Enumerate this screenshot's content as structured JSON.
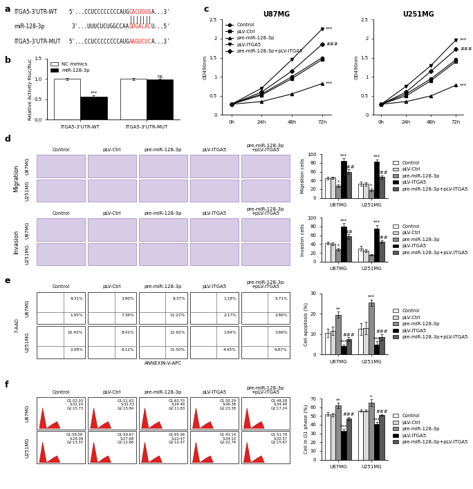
{
  "panel_labels": [
    "a",
    "b",
    "c",
    "d",
    "e",
    "f"
  ],
  "panel_a": {
    "rows": [
      {
        "name": "ITGA5-3'UTR-WT",
        "segments": [
          {
            "text": "5'...CCUCCCCCCCCAUG",
            "color": "#000000"
          },
          {
            "text": "CACUGUG",
            "color": "#e0201b"
          },
          {
            "text": "A...3'",
            "color": "#000000"
          }
        ]
      },
      {
        "name": "miR-128-3p",
        "segments": [
          {
            "text": "3'...UUUCUCUGGCCAA",
            "color": "#000000"
          },
          {
            "text": "GUGACAC",
            "color": "#e0201b"
          },
          {
            "text": "U...5'",
            "color": "#000000"
          }
        ]
      },
      {
        "name": "ITGA5-3'UTR-MUT",
        "segments": [
          {
            "text": "5'...CCUCCCCCCCCAUG",
            "color": "#000000"
          },
          {
            "text": "AAGUCUC",
            "color": "#e0201b"
          },
          {
            "text": "A...3'",
            "color": "#000000"
          }
        ]
      }
    ]
  },
  "chart_data": [
    {
      "type": "bar",
      "categories": [
        "ITGA5-3'UTR-WT",
        "ITGA5-3'UTR-MUT"
      ],
      "series": [
        {
          "name": "NC mimics",
          "color": "#ffffff",
          "values": [
            1.0,
            1.0
          ],
          "errors": [
            0.02,
            0.02
          ]
        },
        {
          "name": "miR-128-3p",
          "color": "#000000",
          "values": [
            0.57,
            0.99
          ],
          "errors": [
            0.03,
            0.01
          ]
        }
      ],
      "y_label": "Relative Activity Rluc/fluc",
      "ylim": [
        0,
        1.5
      ],
      "yticks": [
        {
          "value": 0,
          "label": "0.0"
        },
        {
          "value": 0.5,
          "label": "0.5"
        },
        {
          "value": 1,
          "label": "1.0"
        },
        {
          "value": 1.5,
          "label": "1.5"
        }
      ],
      "legend": "upper left",
      "annotations": [
        {
          "series": "miR-128-3p",
          "category": "ITGA5-3'UTR-WT",
          "text": "***"
        },
        {
          "series": "miR-128-3p",
          "category": "ITGA5-3'UTR-MUT",
          "text": "ns"
        }
      ]
    },
    {
      "type": "line",
      "title": "U87MG",
      "categories": [
        "0h",
        "24h",
        "48h",
        "72h"
      ],
      "series": [
        {
          "name": "Control",
          "color": "#000000",
          "marker": "circle",
          "values": [
            0.28,
            0.55,
            1.0,
            1.5
          ]
        },
        {
          "name": "pLV-Ctrl",
          "color": "#000000",
          "marker": "square",
          "values": [
            0.28,
            0.52,
            0.95,
            1.45
          ]
        },
        {
          "name": "pre-miR-128-3p",
          "color": "#000000",
          "marker": "triangle_up",
          "values": [
            0.28,
            0.35,
            0.55,
            0.82
          ]
        },
        {
          "name": "pLV-ITGA5",
          "color": "#000000",
          "marker": "triangle_down",
          "values": [
            0.28,
            0.7,
            1.45,
            2.25
          ]
        },
        {
          "name": "pre-miR-128-3p+pLV-ITGA5",
          "color": "#000000",
          "marker": "diamond",
          "values": [
            0.28,
            0.6,
            1.15,
            1.85
          ]
        }
      ],
      "y_label": "OD490nm",
      "ylim": [
        0,
        2.5
      ],
      "yticks": [
        0,
        0.5,
        1,
        1.5,
        2,
        2.5
      ],
      "legend": "upper left",
      "annotations": [
        {
          "series": "pLV-ITGA5",
          "category": "72h",
          "text": "***"
        },
        {
          "series": "pre-miR-128-3p+pLV-ITGA5",
          "category": "72h",
          "text": "###"
        },
        {
          "series": "pre-miR-128-3p",
          "category": "72h",
          "text": "***"
        }
      ]
    },
    {
      "type": "line",
      "title": "U251MG",
      "categories": [
        "0h",
        "24h",
        "48h",
        "72h"
      ],
      "series": [
        {
          "name": "Control",
          "color": "#000000",
          "marker": "circle",
          "values": [
            0.28,
            0.55,
            0.95,
            1.45
          ]
        },
        {
          "name": "pLV-Ctrl",
          "color": "#000000",
          "marker": "square",
          "values": [
            0.28,
            0.5,
            0.9,
            1.4
          ]
        },
        {
          "name": "pre-miR-128-3p",
          "color": "#000000",
          "marker": "triangle_up",
          "values": [
            0.28,
            0.35,
            0.5,
            0.78
          ]
        },
        {
          "name": "pLV-ITGA5",
          "color": "#000000",
          "marker": "triangle_down",
          "values": [
            0.28,
            0.75,
            1.3,
            1.97
          ]
        },
        {
          "name": "pre-miR-128-3p+pLV-ITGA5",
          "color": "#000000",
          "marker": "diamond",
          "values": [
            0.28,
            0.6,
            1.15,
            1.72
          ]
        }
      ],
      "y_label": "OD490nm",
      "ylim": [
        0,
        2.5
      ],
      "yticks": [
        0,
        0.5,
        1,
        1.5,
        2,
        2.5
      ],
      "annotations": [
        {
          "series": "pLV-ITGA5",
          "category": "72h",
          "text": "***"
        },
        {
          "series": "pre-miR-128-3p+pLV-ITGA5",
          "category": "72h",
          "text": "###"
        },
        {
          "series": "pre-miR-128-3p",
          "category": "72h",
          "text": "***"
        }
      ]
    },
    {
      "type": "bar",
      "categories": [
        "U87MG",
        "U251MG"
      ],
      "series": [
        {
          "name": "Control",
          "color": "#ffffff",
          "values": [
            45,
            33
          ],
          "errors": [
            3,
            5
          ]
        },
        {
          "name": "pLV-Ctrl",
          "color": "#d9d9d9",
          "values": [
            46,
            32
          ],
          "errors": [
            3,
            4
          ]
        },
        {
          "name": "pre-miR-128-3p",
          "color": "#8c8c8c",
          "values": [
            28,
            19
          ],
          "errors": [
            3,
            3
          ]
        },
        {
          "name": "pLV-ITGA5",
          "color": "#000000",
          "values": [
            85,
            83
          ],
          "errors": [
            5,
            5
          ]
        },
        {
          "name": "pre-miR-128-3p+pLV-ITGA5",
          "color": "#595959",
          "values": [
            60,
            48
          ],
          "errors": [
            5,
            4
          ]
        }
      ],
      "y_label": "Migration cells",
      "ylim": [
        0,
        100
      ],
      "yticks": [
        0,
        20,
        40,
        60,
        80,
        100
      ],
      "legend": "right",
      "annotations": [
        {
          "series": "pre-miR-128-3p",
          "category": "U87MG",
          "text": "*"
        },
        {
          "series": "pLV-ITGA5",
          "category": "U87MG",
          "text": "***"
        },
        {
          "series": "pre-miR-128-3p+pLV-ITGA5",
          "category": "U87MG",
          "text": "###"
        },
        {
          "series": "pre-miR-128-3p",
          "category": "U251MG",
          "text": "*"
        },
        {
          "series": "pLV-ITGA5",
          "category": "U251MG",
          "text": "***"
        },
        {
          "series": "pre-miR-128-3p+pLV-ITGA5",
          "category": "U251MG",
          "text": "###"
        }
      ]
    },
    {
      "type": "bar",
      "categories": [
        "U87MG",
        "U251MG"
      ],
      "series": [
        {
          "name": "Control",
          "color": "#ffffff",
          "values": [
            42,
            30
          ],
          "errors": [
            3,
            5
          ]
        },
        {
          "name": "pLV-Ctrl",
          "color": "#d9d9d9",
          "values": [
            40,
            25
          ],
          "errors": [
            3,
            3
          ]
        },
        {
          "name": "pre-miR-128-3p",
          "color": "#8c8c8c",
          "values": [
            28,
            15
          ],
          "errors": [
            3,
            2
          ]
        },
        {
          "name": "pLV-ITGA5",
          "color": "#000000",
          "values": [
            80,
            75
          ],
          "errors": [
            7,
            8
          ]
        },
        {
          "name": "pre-miR-128-3p+pLV-ITGA5",
          "color": "#595959",
          "values": [
            57,
            45
          ],
          "errors": [
            5,
            3
          ]
        }
      ],
      "y_label": "Invasion cells",
      "ylim": [
        0,
        100
      ],
      "yticks": [
        0,
        20,
        40,
        60,
        80,
        100
      ],
      "legend": "right",
      "annotations": [
        {
          "series": "pre-miR-128-3p",
          "category": "U87MG",
          "text": "*"
        },
        {
          "series": "pLV-ITGA5",
          "category": "U87MG",
          "text": "***"
        },
        {
          "series": "pre-miR-128-3p+pLV-ITGA5",
          "category": "U87MG",
          "text": "##"
        },
        {
          "series": "pLV-ITGA5",
          "category": "U251MG",
          "text": "***"
        },
        {
          "series": "pre-miR-128-3p+pLV-ITGA5",
          "category": "U251MG",
          "text": "###"
        }
      ]
    },
    {
      "type": "bar",
      "categories": [
        "U87MG",
        "U251MG"
      ],
      "series": [
        {
          "name": "Control",
          "color": "#ffffff",
          "values": [
            10.5,
            12.5
          ],
          "errors": [
            2,
            3
          ]
        },
        {
          "name": "pLV-Ctrl",
          "color": "#d9d9d9",
          "values": [
            11.5,
            13
          ],
          "errors": [
            2,
            3
          ]
        },
        {
          "name": "pre-miR-128-3p",
          "color": "#8c8c8c",
          "values": [
            19.5,
            25.5
          ],
          "errors": [
            1.5,
            1.5
          ]
        },
        {
          "name": "pLV-ITGA5",
          "color": "#000000",
          "values": [
            4,
            5
          ],
          "errors": [
            1,
            1.5
          ]
        },
        {
          "name": "pre-miR-128-3p+pLV-ITGA5",
          "color": "#595959",
          "values": [
            7.5,
            8.5
          ],
          "errors": [
            1,
            1.5
          ]
        }
      ],
      "y_label": "Cell apoptosis (%)",
      "ylim": [
        0,
        30
      ],
      "yticks": [
        0,
        10,
        20,
        30
      ],
      "legend": "right",
      "annotations": [
        {
          "series": "pre-miR-128-3p",
          "category": "U87MG",
          "text": "**"
        },
        {
          "series": "pLV-ITGA5",
          "category": "U87MG",
          "text": "***"
        },
        {
          "series": "pre-miR-128-3p+pLV-ITGA5",
          "category": "U87MG",
          "text": "###"
        },
        {
          "series": "pre-miR-128-3p",
          "category": "U251MG",
          "text": "***"
        },
        {
          "series": "pLV-ITGA5",
          "category": "U251MG",
          "text": "***"
        },
        {
          "series": "pre-miR-128-3p+pLV-ITGA5",
          "category": "U251MG",
          "text": "###"
        }
      ]
    },
    {
      "type": "bar",
      "categories": [
        "U87MG",
        "U251MG"
      ],
      "series": [
        {
          "name": "Control",
          "color": "#ffffff",
          "values": [
            52,
            56
          ],
          "errors": [
            2,
            1
          ]
        },
        {
          "name": "pLV-Ctrl",
          "color": "#d9d9d9",
          "values": [
            51.5,
            56
          ],
          "errors": [
            2,
            1
          ]
        },
        {
          "name": "pre-miR-128-3p",
          "color": "#8c8c8c",
          "values": [
            62,
            65
          ],
          "errors": [
            3,
            4
          ]
        },
        {
          "name": "pLV-ITGA5",
          "color": "#000000",
          "values": [
            33,
            41
          ],
          "errors": [
            2,
            2
          ]
        },
        {
          "name": "pre-miR-128-3p+pLV-ITGA5",
          "color": "#595959",
          "values": [
            47,
            51
          ],
          "errors": [
            2,
            1
          ]
        }
      ],
      "y_label": "Cell in G1 phase (%)",
      "ylim": [
        0,
        70
      ],
      "yticks": [
        0,
        10,
        20,
        30,
        40,
        50,
        60,
        70
      ],
      "legend": "right",
      "annotations": [
        {
          "series": "pre-miR-128-3p",
          "category": "U87MG",
          "text": "**"
        },
        {
          "series": "pLV-ITGA5",
          "category": "U87MG",
          "text": "***"
        },
        {
          "series": "pre-miR-128-3p+pLV-ITGA5",
          "category": "U87MG",
          "text": "###"
        },
        {
          "series": "pre-miR-128-3p",
          "category": "U251MG",
          "text": "*"
        },
        {
          "series": "pLV-ITGA5",
          "category": "U251MG",
          "text": "***"
        },
        {
          "series": "pre-miR-128-3p+pLV-ITGA5",
          "category": "U251MG",
          "text": "###"
        }
      ]
    }
  ],
  "image_panels": {
    "d": {
      "columns": [
        "Control",
        "pLV-Ctrl",
        "pre-miR-128-3p",
        "pLV-ITGA5",
        "pre-miR-128-3p\n+pLV-ITGA5"
      ],
      "sections": [
        {
          "title": "Migration",
          "rows": [
            "U87MG",
            "U251MG"
          ]
        },
        {
          "title": "Invasion",
          "rows": [
            "U87MG",
            "U251MG"
          ]
        }
      ]
    },
    "e": {
      "columns": [
        "Control",
        "pLV-Ctrl",
        "pre-miR-128-3p",
        "pLV-ITGA5",
        "pre-miR-128-3p\n+pLV-ITGA5"
      ],
      "x_label": "ANNEXIN-V-APC",
      "y_label": "7-AAD",
      "rows": [
        {
          "name": "U87MG",
          "cells": [
            [
              "9.31%",
              "1.95%"
            ],
            [
              "3.90%",
              "7.36%"
            ],
            [
              "9.37%",
              "11.22%"
            ],
            [
              "1.18%",
              "2.17%"
            ],
            [
              "5.71%",
              "2.86%"
            ]
          ]
        },
        {
          "name": "U251MG",
          "cells": [
            [
              "10.45%",
              "2.08%"
            ],
            [
              "8.41%",
              "6.11%"
            ],
            [
              "12.92%",
              "11.50%"
            ],
            [
              "1.84%",
              "4.45%"
            ],
            [
              "3.86%",
              "6.87%"
            ]
          ]
        }
      ]
    },
    "f": {
      "columns": [
        "Control",
        "pLV-Ctrl",
        "pre-miR-128-3p",
        "pLV-ITGA5",
        "pre-miR-128-3p\n+pLV-ITGA5"
      ],
      "rows": [
        {
          "name": "U87MG",
          "cells": [
            "G1:52.03\nS:32.24\nG2:15.73",
            "G1:51.63\nS:32.53\nG2:15.84",
            "G1:63.70\nS:24.46\nG2:11.83",
            "G1:30.29\nS:46.38\nG2:23.38",
            "G1:48.28\nS:34.48\nG2:17.24"
          ]
        },
        {
          "name": "U251MG",
          "cells": [
            "G1:58.58\nS:28.09\nG2:13.33",
            "G1:59.67\nS:27.68\nG2:12.66",
            "G1:65.06\nS:22.47\nG2:12.47",
            "G1:43.14\nS:34.10\nG2:22.76",
            "G1:51.78\nS:32.57\nG2:15.67"
          ]
        }
      ]
    }
  }
}
